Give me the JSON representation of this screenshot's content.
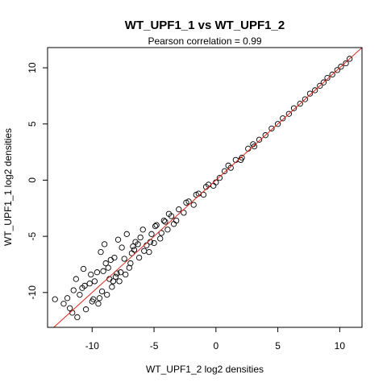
{
  "chart_data": {
    "type": "scatter",
    "title": "WT_UPF1_1 vs WT_UPF1_2",
    "subtitle": "Pearson correlation =  0.99",
    "xlabel": "WT_UPF1_2 log2 densities",
    "ylabel": "WT_UPF1_1 log2 densities",
    "xlim": [
      -13.6,
      11.8
    ],
    "ylim": [
      -13.1,
      11.8
    ],
    "xticks": [
      -10,
      -5,
      0,
      5,
      10
    ],
    "yticks": [
      -10,
      -5,
      0,
      5,
      10
    ],
    "grid": false,
    "legend": "none",
    "reference_line": {
      "slope": 1,
      "intercept": 0,
      "color": "#e0241b"
    },
    "point_color": "#000000",
    "points": {
      "x": [
        -13.0,
        -12.3,
        -11.8,
        -12.0,
        -11.5,
        -11.2,
        -11.6,
        -10.8,
        -10.2,
        -9.6,
        -11.0,
        -10.5,
        -10.0,
        -9.8,
        -11.3,
        -10.7,
        -10.1,
        -9.3,
        -9.0,
        -9.5,
        -8.9,
        -8.6,
        -8.2,
        -8.8,
        -8.4,
        -7.9,
        -8.1,
        -7.6,
        -7.2,
        -7.0,
        -6.8,
        -6.5,
        -6.2,
        -5.9,
        -5.6,
        -5.2,
        -4.8,
        -4.5,
        -4.1,
        -3.8,
        -3.4,
        -3.0,
        -2.6,
        -2.2,
        -1.8,
        -1.4,
        -1.0,
        -0.6,
        -0.2,
        0.3,
        0.7,
        1.2,
        1.6,
        2.1,
        2.6,
        3.1,
        3.5,
        4.0,
        4.5,
        5.0,
        5.4,
        5.9,
        6.3,
        6.8,
        7.2,
        7.6,
        8.0,
        8.4,
        8.7,
        9.0,
        9.4,
        9.8,
        10.1,
        10.5,
        10.8,
        -9.2,
        -8.0,
        -7.4,
        -6.6,
        -5.8,
        -5.0,
        -4.2,
        -3.2,
        -2.4,
        -1.6,
        -0.8,
        0.0,
        1.0,
        2.0,
        3.0,
        -10.6,
        -9.9,
        -9.1,
        -8.3,
        -7.7,
        -6.9,
        -6.1,
        -5.3,
        -4.4,
        -3.6,
        -8.7,
        -7.3,
        -6.3,
        -5.4,
        -9.4,
        -8.5,
        -7.8,
        -6.7,
        -4.9,
        -3.9
      ],
      "y": [
        -10.6,
        -11.0,
        -11.4,
        -10.5,
        -9.8,
        -12.2,
        -11.8,
        -9.6,
        -9.2,
        -8.2,
        -10.2,
        -11.5,
        -10.8,
        -9.0,
        -8.8,
        -7.9,
        -8.4,
        -6.4,
        -5.7,
        -11.0,
        -7.4,
        -8.8,
        -6.9,
        -10.2,
        -9.5,
        -5.3,
        -8.6,
        -6.0,
        -4.8,
        -7.8,
        -6.5,
        -5.5,
        -6.9,
        -4.4,
        -5.8,
        -4.8,
        -4.0,
        -5.2,
        -3.7,
        -3.0,
        -3.9,
        -2.6,
        -2.9,
        -1.9,
        -2.2,
        -1.2,
        -1.3,
        -0.4,
        -0.5,
        0.2,
        0.8,
        1.1,
        1.8,
        2.0,
        2.8,
        3.0,
        3.6,
        4.0,
        4.6,
        5.0,
        5.5,
        5.9,
        6.4,
        6.8,
        7.2,
        7.7,
        8.0,
        8.4,
        8.7,
        9.1,
        9.4,
        9.8,
        10.1,
        10.4,
        10.8,
        -9.9,
        -8.3,
        -7.0,
        -6.2,
        -6.3,
        -5.6,
        -3.6,
        -3.6,
        -2.0,
        -1.3,
        -0.6,
        -0.2,
        1.3,
        1.8,
        3.2,
        -9.4,
        -10.6,
        -8.1,
        -9.0,
        -8.2,
        -7.4,
        -5.1,
        -5.5,
        -4.7,
        -3.2,
        -7.8,
        -8.4,
        -5.7,
        -6.4,
        -10.5,
        -7.1,
        -9.0,
        -5.9,
        -4.1,
        -4.4
      ]
    }
  }
}
